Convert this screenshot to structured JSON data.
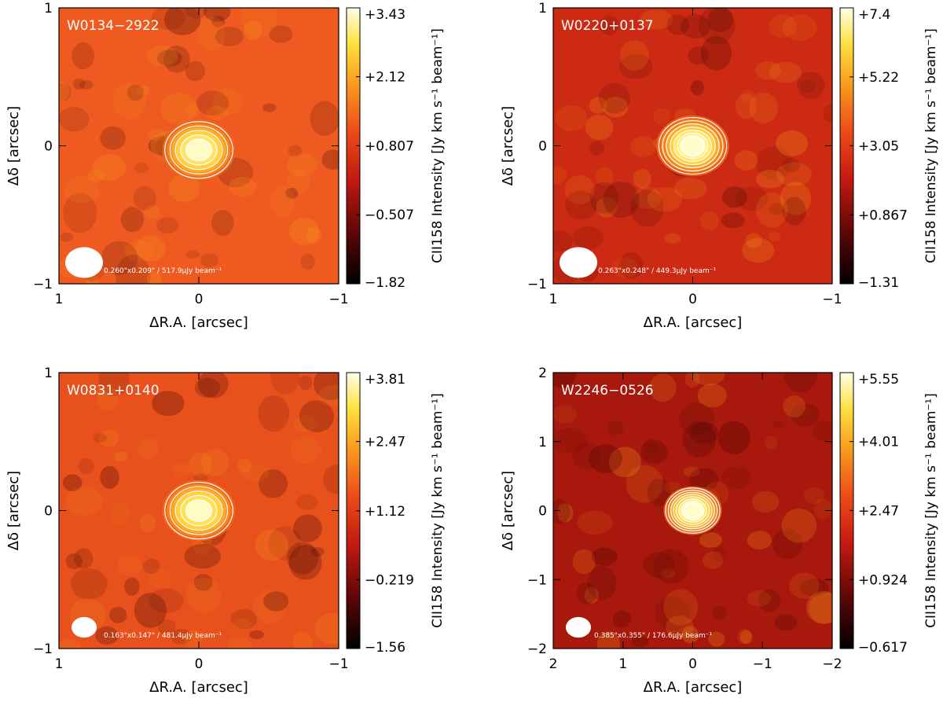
{
  "figure": {
    "colorbar_label": "CII158 Intensity [Jy km s⁻¹ beam⁻¹]",
    "xlabel": "ΔR.A. [arcsec]",
    "ylabel": "Δδ [arcsec]"
  },
  "chart_data": [
    {
      "type": "heatmap",
      "title": "W0134−2922",
      "xlabel": "ΔR.A. [arcsec]",
      "ylabel": "Δδ [arcsec]",
      "xlim": [
        1,
        -1
      ],
      "ylim": [
        -1,
        1
      ],
      "xticks": [
        "1",
        "0",
        "−1"
      ],
      "yticks": [
        "−1",
        "0",
        "1"
      ],
      "colorbar": {
        "label": "CII158 Intensity [Jy km s⁻¹ beam⁻¹]",
        "range": [
          -1.82,
          3.43
        ],
        "ticks": [
          "−1.82",
          "−0.507",
          "+0.807",
          "+2.12",
          "+3.43"
        ]
      },
      "beam_label": "0.260\"x0.209\" / 517.9μJy beam⁻¹",
      "background": "#ef5a20",
      "peak_color": "#ffe870",
      "peak_position": [
        0.0,
        -0.03
      ],
      "contour_levels": 5
    },
    {
      "type": "heatmap",
      "title": "W0220+0137",
      "xlabel": "ΔR.A. [arcsec]",
      "ylabel": "Δδ [arcsec]",
      "xlim": [
        1,
        -1
      ],
      "ylim": [
        -1,
        1
      ],
      "xticks": [
        "1",
        "0",
        "−1"
      ],
      "yticks": [
        "−1",
        "0",
        "1"
      ],
      "colorbar": {
        "label": "CII158 Intensity [Jy km s⁻¹ beam⁻¹]",
        "range": [
          -1.31,
          7.4
        ],
        "ticks": [
          "−1.31",
          "+0.867",
          "+3.05",
          "+5.22",
          "+7.4"
        ]
      },
      "beam_label": "0.263\"x0.248\" / 449.3μJy beam⁻¹",
      "background": "#cc2a12",
      "peak_color": "#fff07a",
      "peak_position": [
        0.0,
        0.0
      ],
      "contour_levels": 7
    },
    {
      "type": "heatmap",
      "title": "W0831+0140",
      "xlabel": "ΔR.A. [arcsec]",
      "ylabel": "Δδ [arcsec]",
      "xlim": [
        1,
        -1
      ],
      "ylim": [
        -1,
        1
      ],
      "xticks": [
        "1",
        "0",
        "−1"
      ],
      "yticks": [
        "−1",
        "0",
        "1"
      ],
      "colorbar": {
        "label": "CII158 Intensity [Jy km s⁻¹ beam⁻¹]",
        "range": [
          -1.56,
          3.81
        ],
        "ticks": [
          "−1.56",
          "−0.219",
          "+1.12",
          "+2.47",
          "+3.81"
        ]
      },
      "beam_label": "0.163\"x0.147\" / 481.4μJy beam⁻¹",
      "background": "#e8501c",
      "peak_color": "#ffe45a",
      "peak_position": [
        0.0,
        0.0
      ],
      "contour_levels": 5
    },
    {
      "type": "heatmap",
      "title": "W2246−0526",
      "xlabel": "ΔR.A. [arcsec]",
      "ylabel": "Δδ [arcsec]",
      "xlim": [
        2,
        -2
      ],
      "ylim": [
        -2,
        2
      ],
      "xticks": [
        "2",
        "1",
        "0",
        "−1",
        "−2"
      ],
      "yticks": [
        "−2",
        "−1",
        "0",
        "1",
        "2"
      ],
      "colorbar": {
        "label": "CII158 Intensity [Jy km s⁻¹ beam⁻¹]",
        "range": [
          -0.617,
          5.55
        ],
        "ticks": [
          "−0.617",
          "+0.924",
          "+2.47",
          "+4.01",
          "+5.55"
        ]
      },
      "beam_label": "0.385\"x0.355\" / 176.6μJy beam⁻¹",
      "background": "#a8180c",
      "peak_color": "#fff27c",
      "peak_position": [
        0.0,
        0.0
      ],
      "contour_levels": 8
    }
  ]
}
